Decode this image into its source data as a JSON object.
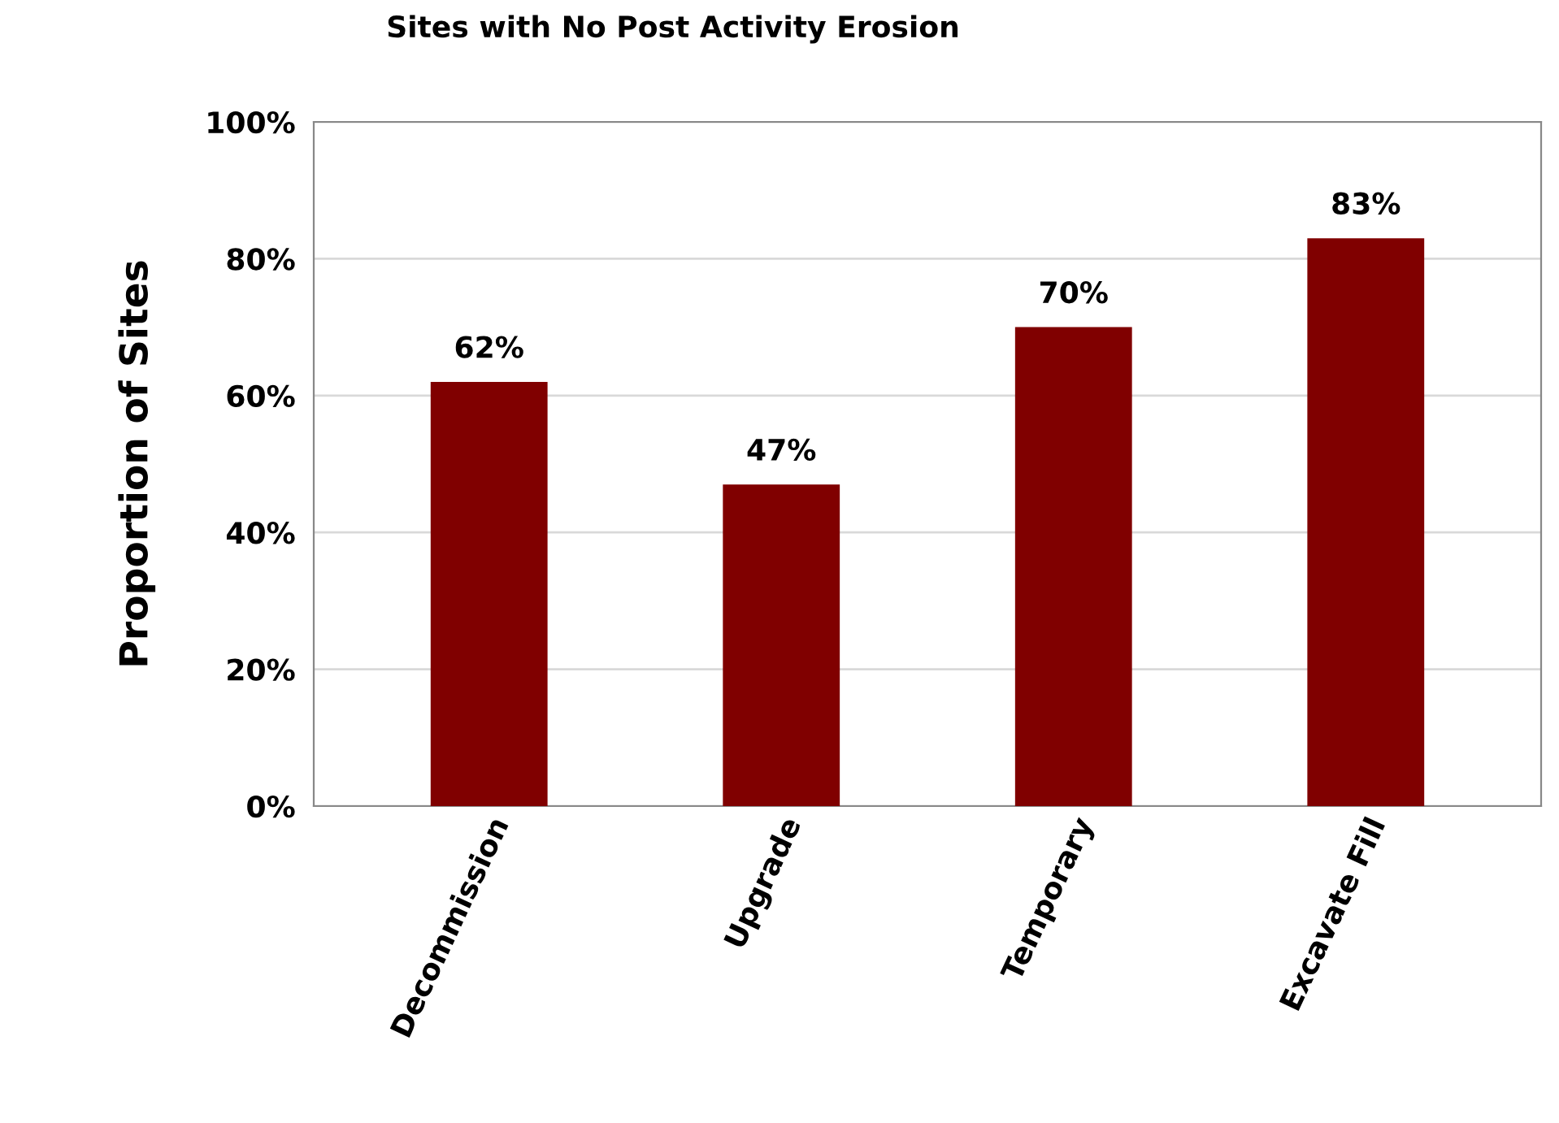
{
  "chart_data": {
    "type": "bar",
    "title": "Sites with No Post Activity Erosion",
    "ylabel": "Proportion of Sites",
    "categories": [
      "Decommission",
      "Upgrade",
      "Temporary",
      "Excavate Fill"
    ],
    "values": [
      62,
      47,
      70,
      83
    ],
    "color": "#800000",
    "value_labels": [
      "62%",
      "47%",
      "70%",
      "83%"
    ],
    "ylim": [
      0,
      100
    ],
    "yticks": [
      {
        "value": 0,
        "label": "0%"
      },
      {
        "value": 20,
        "label": "20%"
      },
      {
        "value": 40,
        "label": "40%"
      },
      {
        "value": 60,
        "label": "60%"
      },
      {
        "value": 80,
        "label": "80%"
      },
      {
        "value": 100,
        "label": "100%"
      }
    ],
    "grid": "y"
  }
}
